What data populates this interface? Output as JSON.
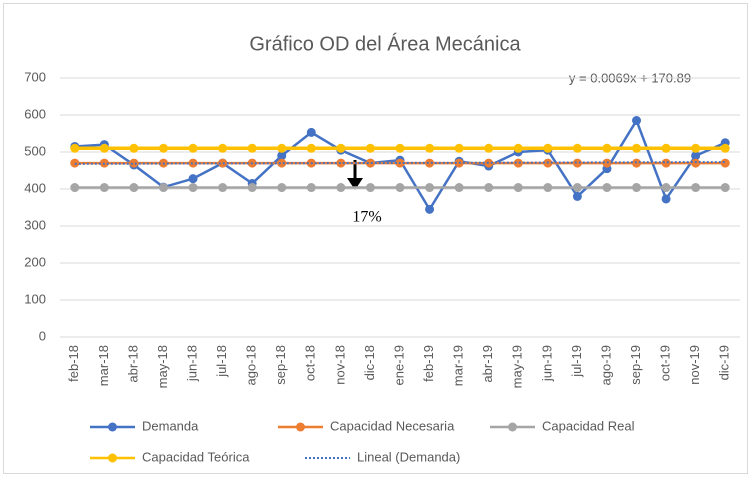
{
  "chart_data": {
    "type": "line",
    "title": "Gráfico OD del Área Mecánica",
    "categories": [
      "feb-18",
      "mar-18",
      "abr-18",
      "may-18",
      "jun-18",
      "jul-18",
      "ago-18",
      "sep-18",
      "oct-18",
      "nov-18",
      "dic-18",
      "ene-19",
      "feb-19",
      "mar-19",
      "abr-19",
      "may-19",
      "jun-19",
      "jul-19",
      "ago-19",
      "sep-19",
      "oct-19",
      "nov-19",
      "dic-19"
    ],
    "series": [
      {
        "name": "Demanda",
        "color": "#4472c4",
        "values": [
          515,
          520,
          465,
          405,
          428,
          470,
          415,
          490,
          553,
          505,
          470,
          478,
          345,
          475,
          462,
          500,
          505,
          380,
          455,
          585,
          373,
          490,
          525
        ]
      },
      {
        "name": "Capacidad Necesaria",
        "color": "#ed7d31",
        "values": [
          470,
          470,
          470,
          470,
          470,
          470,
          470,
          470,
          470,
          470,
          470,
          470,
          470,
          470,
          470,
          470,
          470,
          470,
          470,
          470,
          470,
          470,
          470
        ]
      },
      {
        "name": "Capacidad Real",
        "color": "#a5a5a5",
        "values": [
          404,
          404,
          404,
          404,
          404,
          404,
          404,
          404,
          404,
          404,
          404,
          404,
          404,
          404,
          404,
          404,
          404,
          404,
          404,
          404,
          404,
          404,
          404
        ]
      },
      {
        "name": "Capacidad Teórica",
        "color": "#ffc000",
        "values": [
          510,
          510,
          510,
          510,
          510,
          510,
          510,
          510,
          510,
          510,
          510,
          510,
          510,
          510,
          510,
          510,
          510,
          510,
          510,
          510,
          510,
          510,
          510
        ]
      },
      {
        "name": "Lineal (Demanda)",
        "color": "#4472c4",
        "dashed": true,
        "values": [
          468,
          468.2,
          468.4,
          468.7,
          468.9,
          469.1,
          469.3,
          469.5,
          469.7,
          470,
          470.2,
          470.4,
          470.6,
          470.8,
          471.1,
          471.3,
          471.5,
          471.7,
          471.9,
          472.2,
          472.4,
          472.6,
          472.8
        ]
      }
    ],
    "ylim": [
      0,
      700
    ],
    "yticks": [
      0,
      100,
      200,
      300,
      400,
      500,
      600,
      700
    ],
    "grid": true,
    "annotations": [
      "y = 0.0069x + 170.89",
      "17%"
    ]
  }
}
